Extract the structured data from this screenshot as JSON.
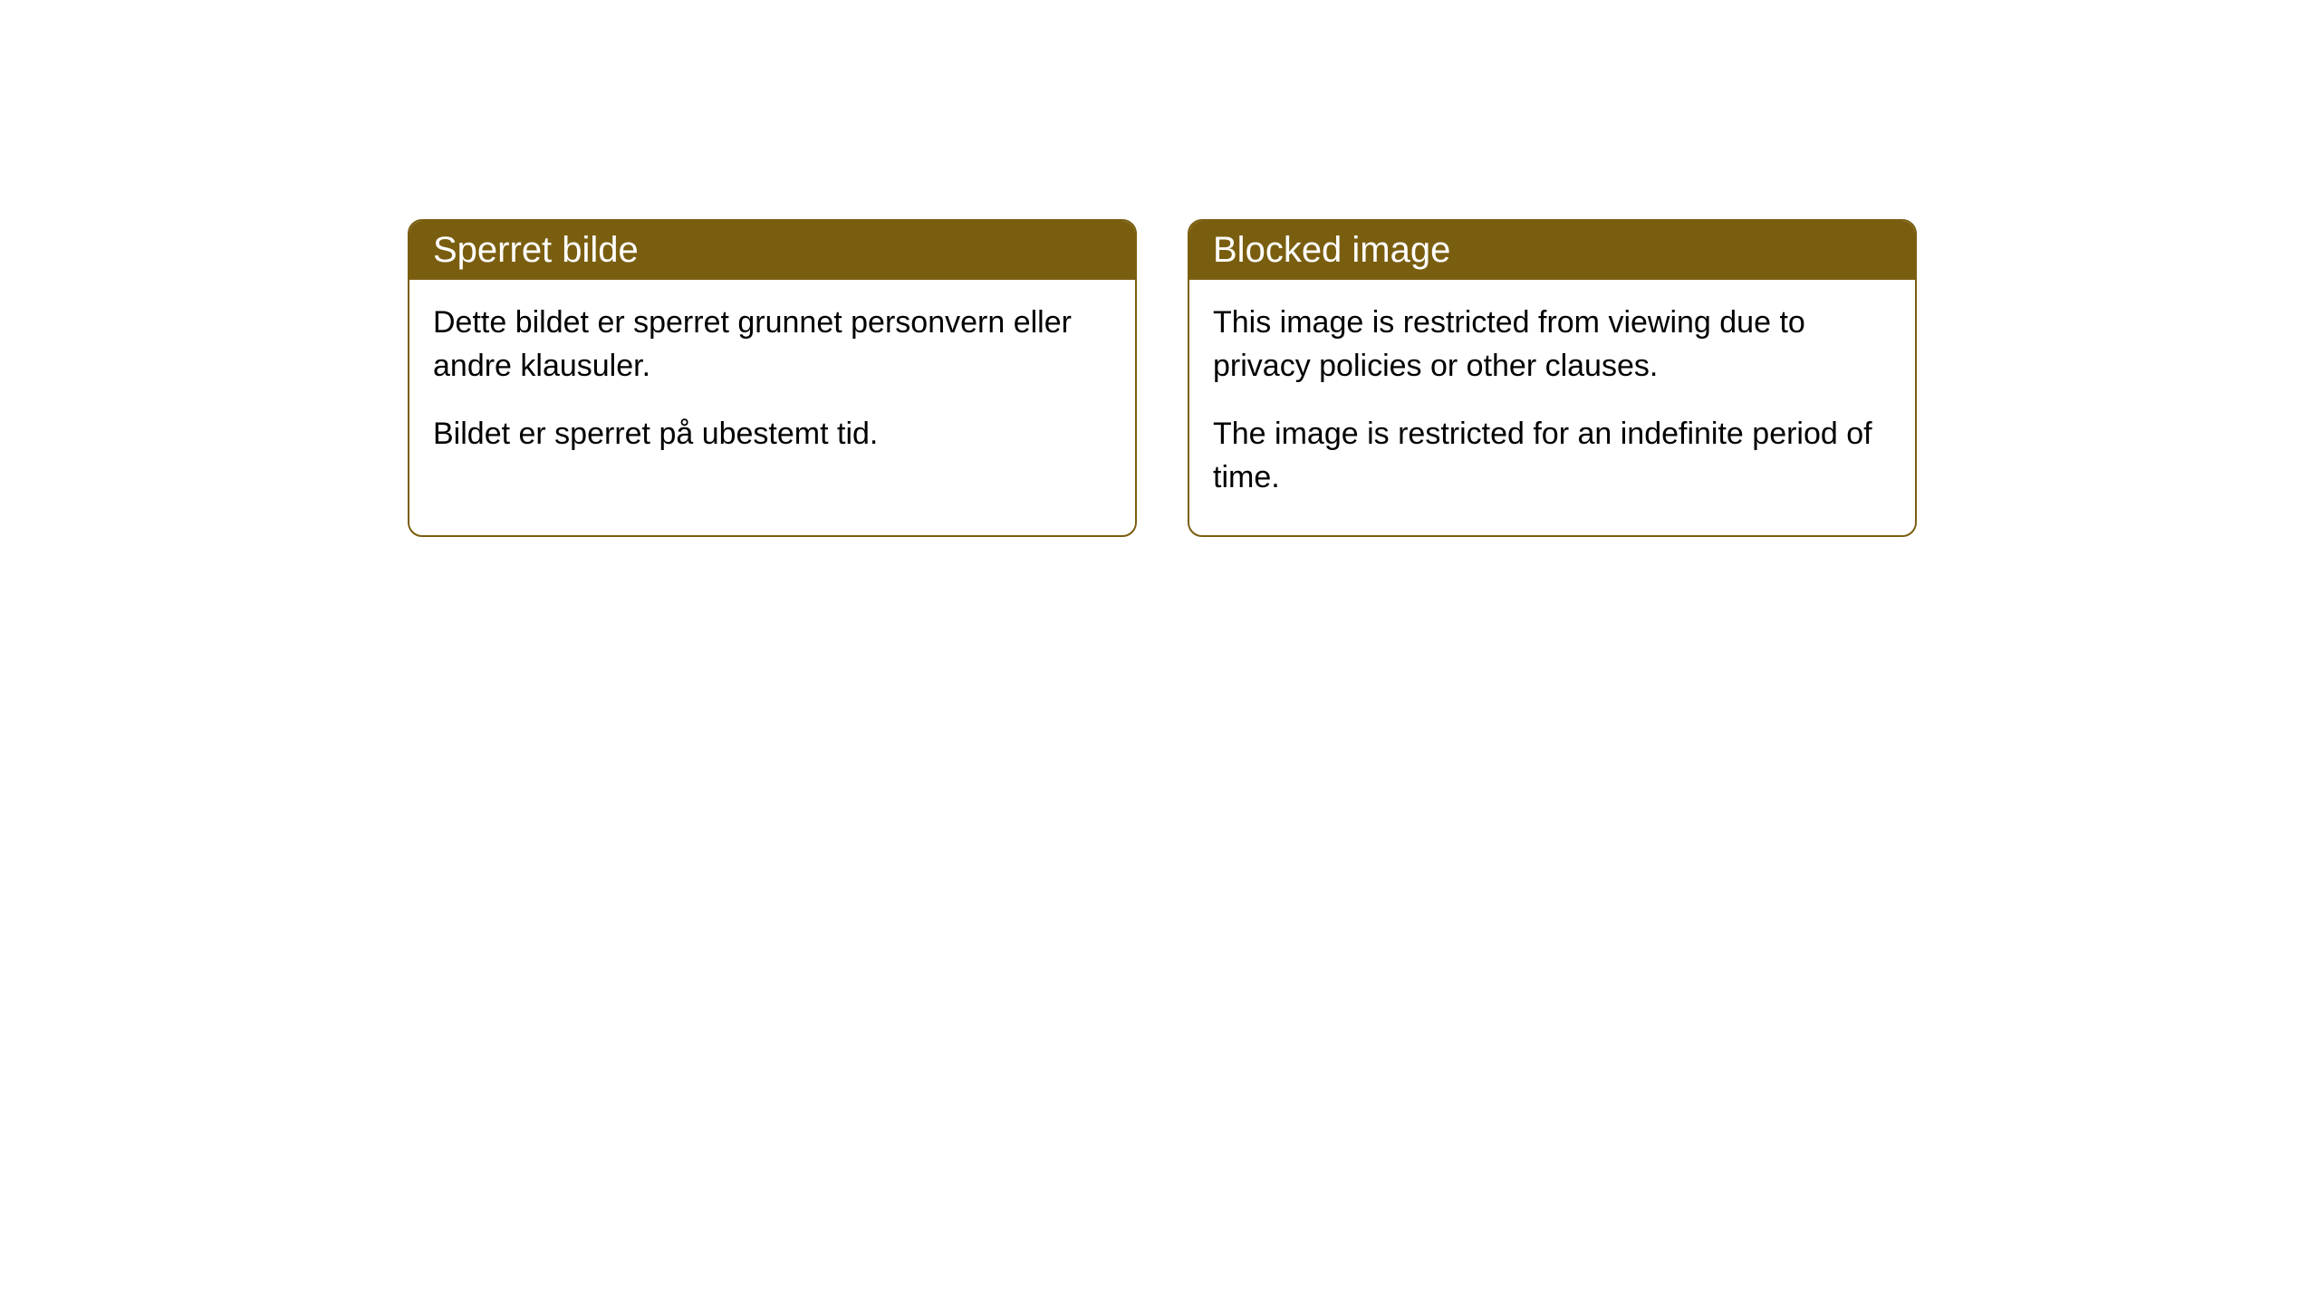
{
  "cards": [
    {
      "title": "Sperret bilde",
      "paragraph1": "Dette bildet er sperret grunnet personvern eller andre klausuler.",
      "paragraph2": "Bildet er sperret på ubestemt tid."
    },
    {
      "title": "Blocked image",
      "paragraph1": "This image is restricted from viewing due to privacy policies or other clauses.",
      "paragraph2": "The image is restricted for an indefinite period of time."
    }
  ],
  "style": {
    "header_bg_color": "#7a5e10",
    "header_text_color": "#ffffff",
    "border_color": "#7a5e10",
    "body_bg_color": "#ffffff",
    "body_text_color": "#000000",
    "border_radius": 16,
    "title_fontsize": 40,
    "body_fontsize": 34
  }
}
